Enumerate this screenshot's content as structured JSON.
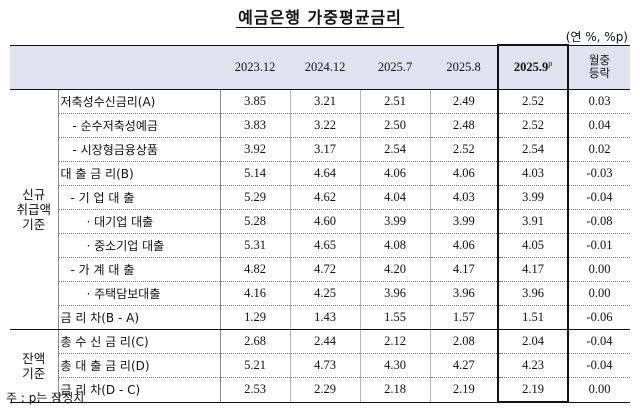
{
  "title": "예금은행 가중평균금리",
  "unit": "(연 %, %p)",
  "columns": [
    "2023.12",
    "2024.12",
    "2025.7",
    "2025.8",
    "2025.9",
    "p",
    "월중\n등락"
  ],
  "groups": {
    "new": "신규\n취급액\n기준",
    "balance": "잔액\n기준"
  },
  "rows": [
    {
      "label": "저축성수신금리(A)",
      "values": [
        "3.85",
        "3.21",
        "2.51",
        "2.49",
        "2.52",
        "0.03"
      ]
    },
    {
      "label": "- 순수저축성예금",
      "values": [
        "3.83",
        "3.22",
        "2.50",
        "2.48",
        "2.52",
        "0.04"
      ]
    },
    {
      "label": "- 시장형금융상품",
      "values": [
        "3.92",
        "3.17",
        "2.54",
        "2.52",
        "2.54",
        "0.02"
      ]
    },
    {
      "label": "대 출 금 리(B)",
      "values": [
        "5.14",
        "4.64",
        "4.06",
        "4.06",
        "4.03",
        "-0.03"
      ]
    },
    {
      "label": "- 기 업 대 출",
      "values": [
        "5.29",
        "4.62",
        "4.04",
        "4.03",
        "3.99",
        "-0.04"
      ]
    },
    {
      "label": "· 대기업 대출",
      "values": [
        "5.28",
        "4.60",
        "3.99",
        "3.99",
        "3.91",
        "-0.08"
      ]
    },
    {
      "label": "· 중소기업 대출",
      "values": [
        "5.31",
        "4.65",
        "4.08",
        "4.06",
        "4.05",
        "-0.01"
      ]
    },
    {
      "label": "- 가 계 대 출",
      "values": [
        "4.82",
        "4.72",
        "4.20",
        "4.17",
        "4.17",
        "0.00"
      ]
    },
    {
      "label": "· 주택담보대출",
      "values": [
        "4.16",
        "4.25",
        "3.96",
        "3.96",
        "3.96",
        "0.00"
      ]
    },
    {
      "label": "금 리 차(B - A)",
      "values": [
        "1.29",
        "1.43",
        "1.55",
        "1.57",
        "1.51",
        "-0.06"
      ]
    },
    {
      "label": "총 수 신 금 리(C)",
      "values": [
        "2.68",
        "2.44",
        "2.12",
        "2.08",
        "2.04",
        "-0.04"
      ]
    },
    {
      "label": "총 대 출 금 리(D)",
      "values": [
        "5.21",
        "4.73",
        "4.30",
        "4.27",
        "4.23",
        "-0.04"
      ]
    },
    {
      "label": "금 리 차(D - C)",
      "values": [
        "2.53",
        "2.29",
        "2.18",
        "2.19",
        "2.19",
        "0.00"
      ]
    }
  ],
  "note": "주 : p는 잠정치"
}
